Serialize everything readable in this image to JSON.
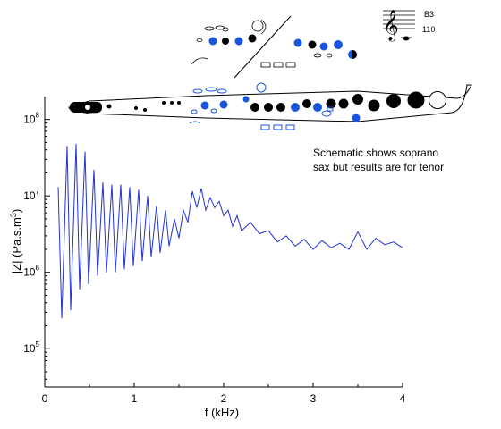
{
  "chart_data": {
    "type": "line",
    "title": "",
    "xlabel": "f (kHz)",
    "ylabel": "|Z| (Pa.s.m",
    "ylabel_sup": "3",
    "ylabel_close": ")",
    "xlim": [
      0,
      4
    ],
    "ylim_log10": [
      4.5,
      8.3
    ],
    "yscale": "log",
    "x_ticks": [
      0,
      1,
      2,
      3,
      4
    ],
    "x_tick_labels": [
      "0",
      "1",
      "2",
      "3",
      "4"
    ],
    "y_tick_labels": [
      {
        "base": "10",
        "exp": "5"
      },
      {
        "base": "10",
        "exp": "6"
      },
      {
        "base": "10",
        "exp": "7"
      },
      {
        "base": "10",
        "exp": "8"
      }
    ],
    "y_tick_values_log10": [
      5,
      6,
      7,
      8
    ],
    "line_color": "#2233cc",
    "series": [
      {
        "x": [
          0.15,
          0.19,
          0.25,
          0.29,
          0.35,
          0.39,
          0.45,
          0.49,
          0.55,
          0.59,
          0.65,
          0.69,
          0.75,
          0.79,
          0.85,
          0.89,
          0.95,
          0.99,
          1.05,
          1.09,
          1.15,
          1.19,
          1.25,
          1.29,
          1.35,
          1.39,
          1.45,
          1.5,
          1.55,
          1.6,
          1.65,
          1.7,
          1.75,
          1.8,
          1.85,
          1.9,
          1.95,
          2.0,
          2.05,
          2.1,
          2.15,
          2.2,
          2.3,
          2.4,
          2.5,
          2.6,
          2.7,
          2.8,
          2.9,
          3.0,
          3.1,
          3.2,
          3.3,
          3.4,
          3.5,
          3.6,
          3.7,
          3.8,
          3.9,
          4.0
        ],
        "y": [
          13000000.0,
          250000.0,
          45000000.0,
          320000.0,
          48000000.0,
          600000.0,
          38000000.0,
          700000.0,
          22000000.0,
          900000.0,
          15000000.0,
          1000000.0,
          14000000.0,
          1000000.0,
          14000000.0,
          1100000.0,
          13000000.0,
          1200000.0,
          12000000.0,
          1400000.0,
          10000000.0,
          1600000.0,
          7500000.0,
          1800000.0,
          6500000.0,
          2200000.0,
          5000000.0,
          2800000.0,
          6500000.0,
          4500000.0,
          11500000.0,
          7000000.0,
          12500000.0,
          6500000.0,
          9500000.0,
          7000000.0,
          8500000.0,
          5500000.0,
          6500000.0,
          4000000.0,
          5500000.0,
          3500000.0,
          4500000.0,
          3200000.0,
          3500000.0,
          2500000.0,
          3000000.0,
          2200000.0,
          2700000.0,
          2000000.0,
          2600000.0,
          2100000.0,
          2400000.0,
          2000000.0,
          3400000.0,
          2000000.0,
          2800000.0,
          2300000.0,
          2500000.0,
          2100000.0
        ]
      }
    ]
  },
  "annotation": {
    "line1": "Schematic shows soprano",
    "line2": "sax but results are for tenor"
  },
  "note_label": "B3",
  "fingering_label": "110",
  "instrument": {
    "body_color": "#000000",
    "key_closed_color": "#1a55e0",
    "key_open_color": "#ffffff"
  }
}
